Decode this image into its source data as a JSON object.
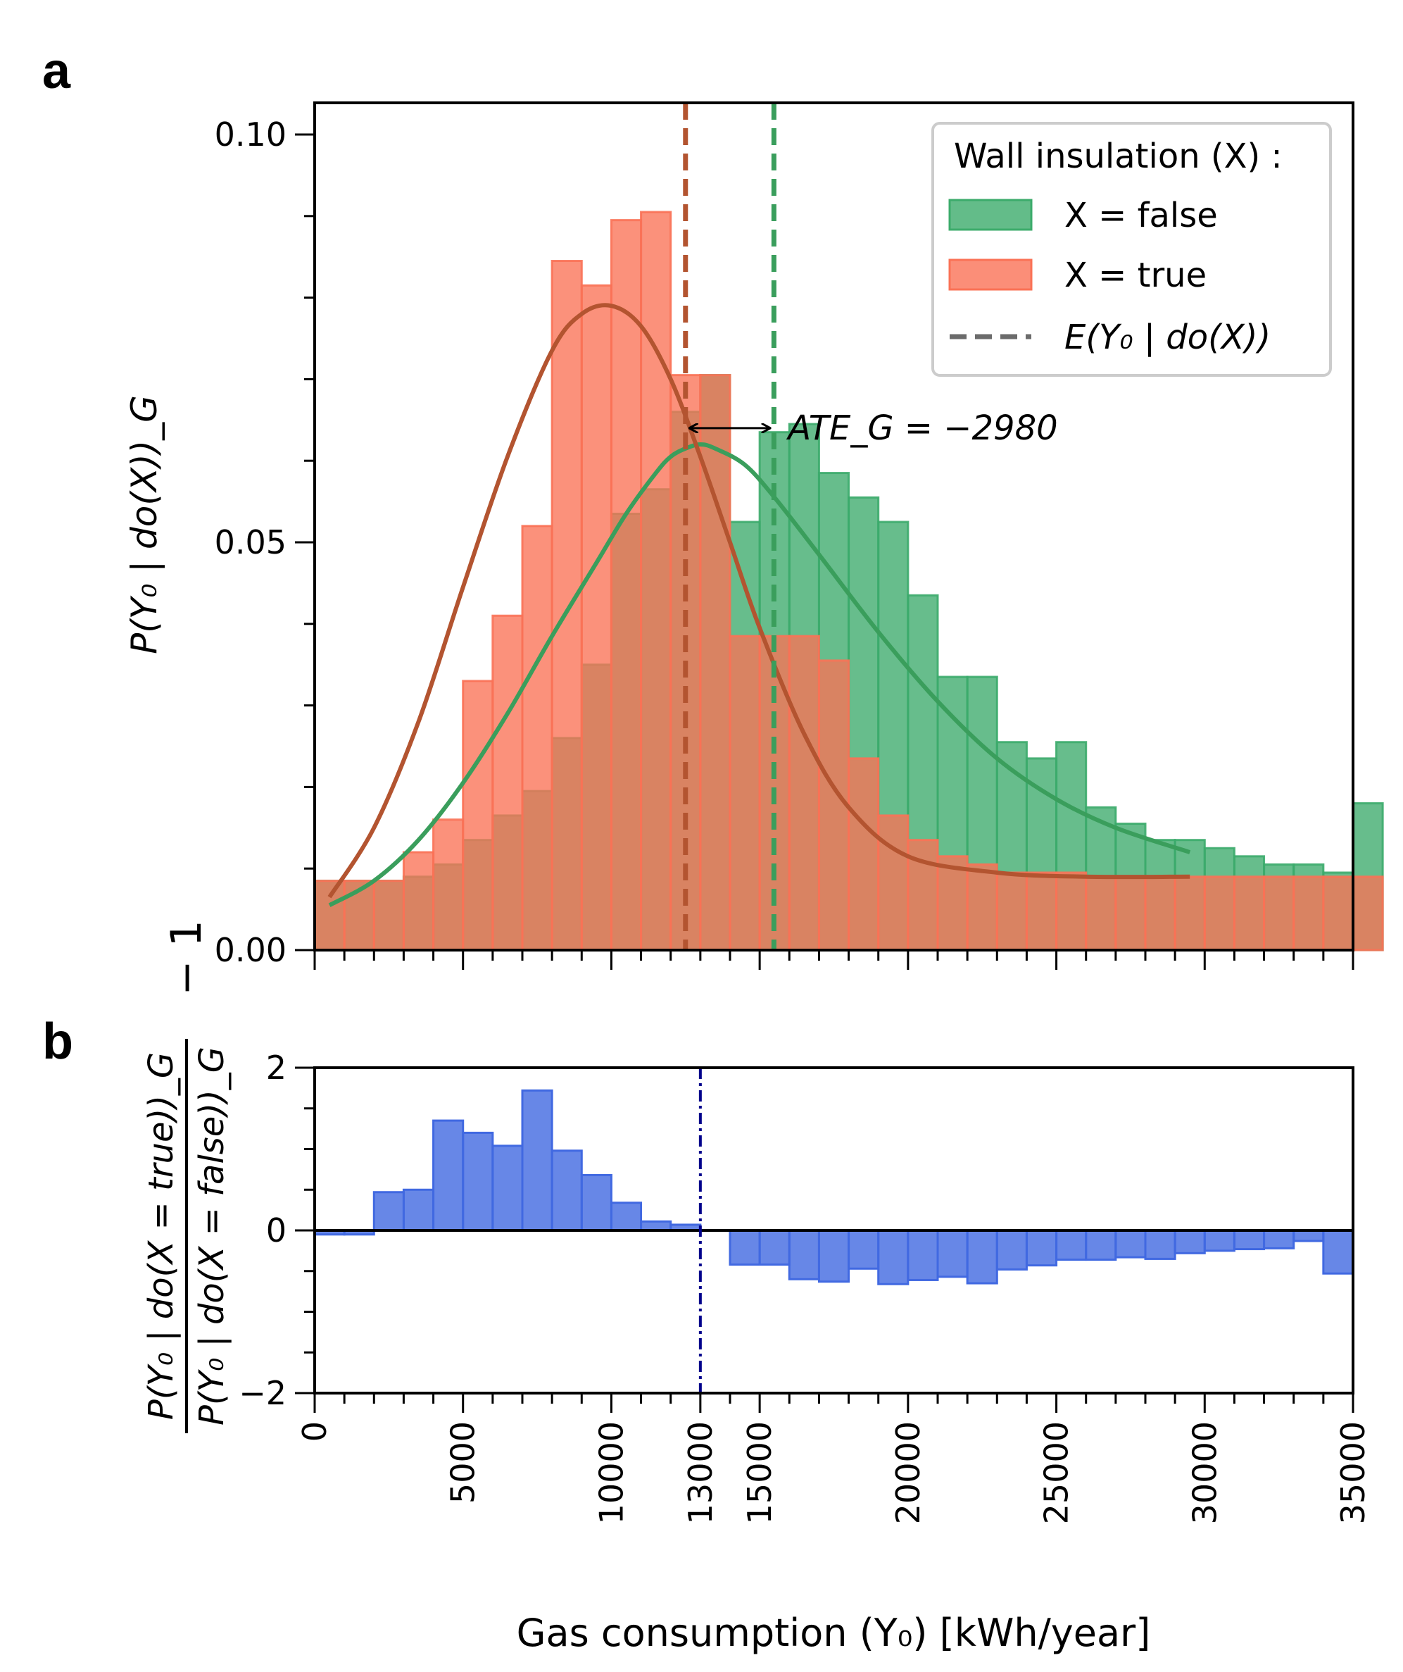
{
  "panels": {
    "a": "a",
    "b": "b"
  },
  "chart_data": [
    {
      "panel": "a",
      "type": "bar",
      "xlim": [
        0,
        35000
      ],
      "ylim": [
        0,
        0.1005
      ],
      "bin_width": 1000,
      "ylabel": "P(Y₀ | do(X))_G",
      "ytick_labels": [
        "0.00",
        "0.05",
        "0.10"
      ],
      "yticks": [
        0,
        0.05,
        0.1
      ],
      "yminor_ticks": [
        0.01,
        0.02,
        0.03,
        0.04,
        0.06,
        0.07,
        0.08,
        0.09
      ],
      "series": [
        {
          "name": "X = false",
          "color": "#3cab6b",
          "values": [
            0.0085,
            0.0085,
            0.0085,
            0.009,
            0.0105,
            0.0135,
            0.0165,
            0.0195,
            0.026,
            0.035,
            0.0535,
            0.0565,
            0.066,
            0.0705,
            0.0525,
            0.0635,
            0.0645,
            0.0585,
            0.0555,
            0.0525,
            0.0435,
            0.0335,
            0.0335,
            0.0255,
            0.0235,
            0.0255,
            0.0175,
            0.0155,
            0.0135,
            0.0135,
            0.0125,
            0.0115,
            0.0105,
            0.0105,
            0.0095,
            0.018
          ]
        },
        {
          "name": "X = true",
          "color": "#fa7256",
          "values": [
            0.0085,
            0.0085,
            0.0085,
            0.012,
            0.016,
            0.033,
            0.041,
            0.052,
            0.0845,
            0.0815,
            0.0895,
            0.0905,
            0.0705,
            0.0705,
            0.0385,
            0.0385,
            0.0385,
            0.0355,
            0.0235,
            0.0165,
            0.0135,
            0.0115,
            0.0105,
            0.0095,
            0.0095,
            0.0095,
            0.009,
            0.009,
            0.009,
            0.009,
            0.009,
            0.009,
            0.009,
            0.009,
            0.009,
            0.009
          ]
        }
      ],
      "fits": [
        {
          "name": "X = false fit",
          "color": "#3a9e5c",
          "x": [
            500,
            2000,
            3500,
            5000,
            6500,
            8000,
            9500,
            10500,
            11500,
            12000,
            12500,
            13000,
            13500,
            14500,
            15500,
            17000,
            19000,
            21000,
            23000,
            25000,
            27000,
            29500
          ],
          "y": [
            0.0055,
            0.0085,
            0.0135,
            0.0205,
            0.029,
            0.0385,
            0.0475,
            0.0535,
            0.0585,
            0.0605,
            0.0615,
            0.062,
            0.0615,
            0.0595,
            0.0555,
            0.0485,
            0.039,
            0.0305,
            0.0235,
            0.0185,
            0.015,
            0.012
          ]
        },
        {
          "name": "X = true fit",
          "color": "#b35430",
          "x": [
            500,
            2000,
            3500,
            5000,
            6500,
            8000,
            9000,
            10000,
            11000,
            12000,
            13000,
            14000,
            15000,
            16500,
            18000,
            20000,
            23000,
            26000,
            29500
          ],
          "y": [
            0.0065,
            0.015,
            0.028,
            0.0445,
            0.0605,
            0.0735,
            0.078,
            0.079,
            0.0765,
            0.07,
            0.0605,
            0.05,
            0.0395,
            0.0265,
            0.0175,
            0.0115,
            0.0095,
            0.009,
            0.009
          ]
        }
      ],
      "mean_lines": [
        {
          "name": "E(Y₀ | do(X)) X = true",
          "x": 12500,
          "color": "#b35430"
        },
        {
          "name": "E(Y₀ | do(X)) X = false",
          "x": 15480,
          "color": "#3a9e5c"
        }
      ],
      "ate_arrow": {
        "x_from": 12500,
        "x_to": 15480,
        "y": 0.064
      },
      "annotation": "ATE_G = −2980",
      "legend": {
        "title": "Wall insulation (X) :",
        "entries": [
          "X = false",
          "X = true",
          "E(Y₀ | do(X))"
        ],
        "placement": "top-right"
      }
    },
    {
      "panel": "b",
      "type": "bar",
      "xlim": [
        0,
        35000
      ],
      "ylim": [
        -2,
        2
      ],
      "bin_width": 1000,
      "color": "#4169e1",
      "values": [
        -0.05,
        -0.05,
        0.47,
        0.5,
        1.35,
        1.2,
        1.04,
        1.72,
        0.98,
        0.68,
        0.34,
        0.11,
        0.07,
        0.0,
        -0.42,
        -0.42,
        -0.6,
        -0.63,
        -0.47,
        -0.66,
        -0.61,
        -0.57,
        -0.65,
        -0.48,
        -0.43,
        -0.36,
        -0.36,
        -0.33,
        -0.35,
        -0.28,
        -0.25,
        -0.23,
        -0.22,
        -0.13,
        -0.53
      ],
      "ytick_labels": [
        "−2",
        "0",
        "2"
      ],
      "yticks": [
        -2,
        0,
        2
      ],
      "yminor_ticks": [
        -1.5,
        -1,
        -0.5,
        0.5,
        1,
        1.5
      ],
      "threshold_line": {
        "x": 13000,
        "color": "#00008b"
      },
      "xticks": [
        0,
        5000,
        10000,
        13000,
        15000,
        20000,
        25000,
        30000,
        35000
      ],
      "xtick_labels": [
        "0",
        "5000",
        "10000",
        "13000",
        "15000",
        "20000",
        "25000",
        "30000",
        "35000"
      ],
      "xminor_step": 1000,
      "xlabel": "Gas consumption (Y₀) [kWh/year]",
      "ylabel_numerator": "P(Y₀ | do(X = true))_G",
      "ylabel_denominator": "P(Y₀ | do(X = false))_G",
      "ylabel_suffix": "− 1"
    }
  ]
}
